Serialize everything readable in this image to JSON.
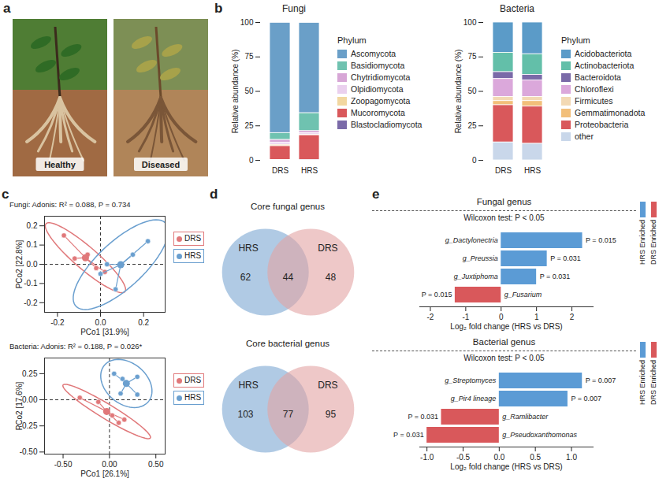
{
  "panel_a": {
    "label": "a",
    "images": [
      {
        "label": "Healthy"
      },
      {
        "label": "Diseased"
      }
    ]
  },
  "chart_data": [
    {
      "panel": "b",
      "type": "bar",
      "stacked": true,
      "title": "Fungi",
      "categories": [
        "DRS",
        "HRS"
      ],
      "ylabel": "Relative abundance (%)",
      "ylim": [
        0,
        100
      ],
      "yticks": [
        0,
        25,
        50,
        75,
        100
      ],
      "legend": "right",
      "legend_title": "Phylum",
      "series": [
        {
          "name": "Ascomycota",
          "color": "#6a9fc8",
          "values": [
            80,
            65.5
          ]
        },
        {
          "name": "Basidiomycota",
          "color": "#6fc2b0",
          "values": [
            5,
            13
          ]
        },
        {
          "name": "Chytridiomycota",
          "color": "#d7a6d6",
          "values": [
            2,
            1.5
          ]
        },
        {
          "name": "Olpidiomycota",
          "color": "#ead0ee",
          "values": [
            1.5,
            1
          ]
        },
        {
          "name": "Zoopagomycota",
          "color": "#f2d7a0",
          "values": [
            1,
            0.5
          ]
        },
        {
          "name": "Mucoromycota",
          "color": "#d9585b",
          "values": [
            10,
            18
          ]
        },
        {
          "name": "Blastocladiomycota",
          "color": "#7a6aa8",
          "values": [
            0.3,
            0.2
          ]
        }
      ]
    },
    {
      "type": "bar",
      "stacked": true,
      "title": "Bacteria",
      "categories": [
        "DRS",
        "HRS"
      ],
      "ylabel": "Relative abundance (%)",
      "ylim": [
        0,
        100
      ],
      "yticks": [
        0,
        25,
        50,
        75,
        100
      ],
      "legend": "right",
      "legend_title": "Phylum",
      "series": [
        {
          "name": "Acidobacteriota",
          "color": "#5b9bc8",
          "values": [
            22,
            23
          ]
        },
        {
          "name": "Actinobacteriota",
          "color": "#63bfa9",
          "values": [
            14,
            15
          ]
        },
        {
          "name": "Bacteroidota",
          "color": "#7a6aa8",
          "values": [
            5,
            4
          ]
        },
        {
          "name": "Chloroflexi",
          "color": "#dba8db",
          "values": [
            13,
            12
          ]
        },
        {
          "name": "Firmicutes",
          "color": "#f3d9b4",
          "values": [
            3,
            3
          ]
        },
        {
          "name": "Gemmatimonadota",
          "color": "#f2bf7a",
          "values": [
            3,
            4
          ]
        },
        {
          "name": "Proteobacteria",
          "color": "#d9585b",
          "values": [
            27,
            27
          ]
        },
        {
          "name": "other",
          "color": "#c9d7ea",
          "values": [
            13,
            12
          ]
        }
      ]
    },
    {
      "panel": "c",
      "type": "scatter",
      "title": "Fungi: Adonis: R² = 0.088, P = 0.734",
      "xlabel": "PCo1 [31.9%]",
      "ylabel": "PCo2 [22.8%]",
      "xlim": [
        -0.26,
        0.3
      ],
      "xticks": [
        {
          "value": -0.2,
          "label": "-0.2"
        },
        {
          "value": 0,
          "label": "0.0"
        },
        {
          "value": 0.2,
          "label": "0.2"
        }
      ],
      "ylim": [
        -0.25,
        0.25
      ],
      "yticks": [
        {
          "value": -0.2,
          "label": "-0.2"
        },
        {
          "value": -0.1,
          "label": "-0.1"
        },
        {
          "value": 0,
          "label": "0.0"
        },
        {
          "value": 0.1,
          "label": "0.1"
        },
        {
          "value": 0.2,
          "label": "0.2"
        }
      ],
      "legend": "right",
      "series": [
        {
          "name": "DRS",
          "color": "#e0787a",
          "x": [
            -0.17,
            -0.12,
            -0.06,
            -0.02,
            0.02
          ],
          "y": [
            0.15,
            0.03,
            0.05,
            -0.02,
            -0.04
          ]
        },
        {
          "name": "HRS",
          "color": "#6a9fcf",
          "x": [
            0.22,
            0.15,
            0.03,
            0.07,
            0.0
          ],
          "y": [
            0.12,
            0.05,
            0.0,
            -0.13,
            -0.05
          ]
        }
      ]
    },
    {
      "type": "scatter",
      "title": "Bacteria: Adonis: R² = 0.188, P = 0.026*",
      "xlabel": "PCo1 [26.1%]",
      "ylabel": "PCo2 [17.6%]",
      "xlim": [
        -0.7,
        0.6
      ],
      "xticks": [
        {
          "value": -0.5,
          "label": "-0.50"
        },
        {
          "value": 0,
          "label": "0.00"
        },
        {
          "value": 0.5,
          "label": "0.50"
        }
      ],
      "ylim": [
        -0.52,
        0.4
      ],
      "yticks": [
        {
          "value": -0.5,
          "label": "-0.50"
        },
        {
          "value": -0.25,
          "label": "-0.25"
        },
        {
          "value": 0,
          "label": "0.00"
        },
        {
          "value": 0.25,
          "label": "0.25"
        }
      ],
      "legend": "right",
      "series": [
        {
          "name": "DRS",
          "color": "#e0787a",
          "x": [
            -0.32,
            -0.12,
            0.03,
            0.1,
            0.16
          ],
          "y": [
            0.02,
            -0.02,
            -0.15,
            -0.22,
            -0.19
          ]
        },
        {
          "name": "HRS",
          "color": "#6a9fcf",
          "x": [
            0.05,
            0.14,
            0.3,
            0.3,
            0.12
          ],
          "y": [
            0.25,
            0.2,
            0.22,
            0.05,
            0.06
          ]
        }
      ]
    },
    {
      "panel": "d",
      "type": "venn",
      "title": "Core fungal genus",
      "categories": [
        "HRS",
        "DRS"
      ],
      "values": [
        62,
        48
      ],
      "overlap": 44,
      "colors": [
        "#8fb4d8",
        "#e3a3a3"
      ]
    },
    {
      "type": "venn",
      "title": "Core bacterial genus",
      "categories": [
        "HRS",
        "DRS"
      ],
      "values": [
        103,
        95
      ],
      "overlap": 77,
      "colors": [
        "#8fb4d8",
        "#e3a3a3"
      ]
    },
    {
      "panel": "e",
      "type": "bar",
      "orientation": "horizontal",
      "title": "Fungal genus",
      "subtitle": "Wilcoxon test: P < 0.05",
      "categories": [
        "g_Dactylonectria",
        "g_Preussia",
        "g_Juxtiphoma",
        "g_Fusarium"
      ],
      "values": [
        2.3,
        1.3,
        1.0,
        -1.3
      ],
      "colors": [
        "#5b9bd5",
        "#5b9bd5",
        "#5b9bd5",
        "#d9585b"
      ],
      "p_labels": [
        "P = 0.015",
        "P = 0.031",
        "P = 0.031",
        "P = 0.015"
      ],
      "xlabel": "Log₂ fold change (HRS vs DRS)",
      "xlim": [
        -2.3,
        2.6
      ],
      "xticks": [
        -2,
        -1,
        0,
        1,
        2
      ],
      "legend": "right",
      "legend_items": [
        {
          "name": "HRS Enriched",
          "color": "#5b9bd5"
        },
        {
          "name": "DRS Enriched",
          "color": "#d9585b"
        }
      ]
    },
    {
      "type": "bar",
      "orientation": "horizontal",
      "title": "Bacterial genus",
      "subtitle": "Wilcoxon test: P < 0.05",
      "categories": [
        "g_Streptomyces",
        "g_Pir4 lineage",
        "g_Ramlibacter",
        "g_Pseudoxanthomonas"
      ],
      "values": [
        1.15,
        0.95,
        -0.8,
        -1.0
      ],
      "colors": [
        "#5b9bd5",
        "#5b9bd5",
        "#d9585b",
        "#d9585b"
      ],
      "p_labels": [
        "P = 0.007",
        "P = 0.007",
        "P = 0.031",
        "P = 0.031"
      ],
      "xlabel": "Log₂ fold change (HRS vs DRS)",
      "xlim": [
        -1.1,
        1.3
      ],
      "xticks": [
        {
          "value": -1,
          "label": "-1.0"
        },
        {
          "value": -0.5,
          "label": "-0.5"
        },
        {
          "value": 0,
          "label": "0.0"
        },
        {
          "value": 0.5,
          "label": "0.5"
        },
        {
          "value": 1,
          "label": "1.0"
        }
      ],
      "legend": "right",
      "legend_items": [
        {
          "name": "HRS Enriched",
          "color": "#5b9bd5"
        },
        {
          "name": "DRS Enriched",
          "color": "#d9585b"
        }
      ]
    }
  ]
}
